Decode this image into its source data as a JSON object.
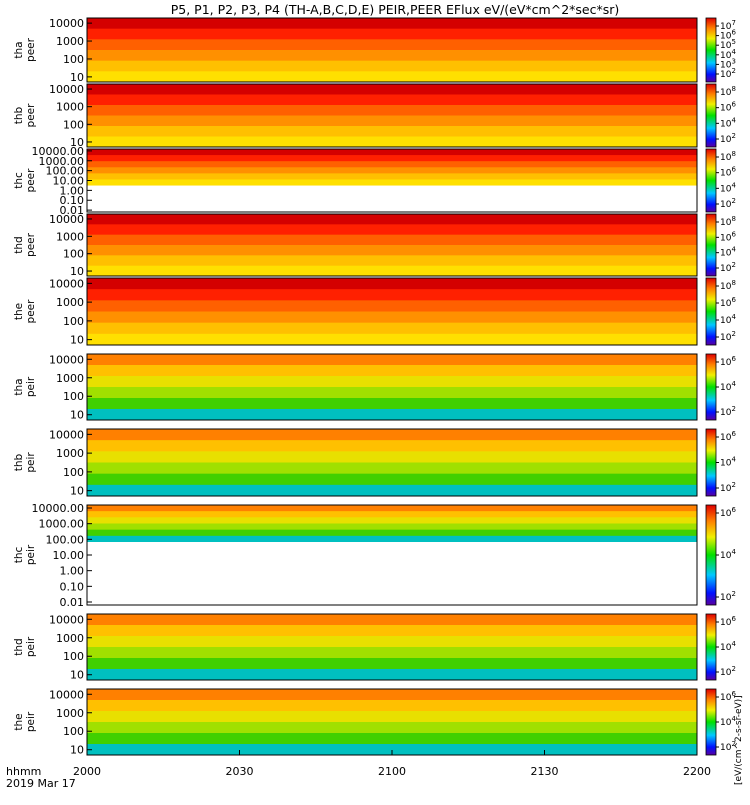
{
  "chart_data": {
    "type": "heatmap",
    "title": "P5, P1, P2, P3, P4 (TH-A,B,C,D,E) PEIR,PEER EFlux eV/(eV*cm^2*sec*sr)",
    "x": {
      "label_line1": "hhmm",
      "label_line2": "2019 Mar 17",
      "ticks": [
        "2000",
        "2030",
        "2100",
        "2130",
        "2200"
      ],
      "range": [
        "2000",
        "2200"
      ]
    },
    "colorbar_label": "[eV/(cm^2-s-sr-eV)]",
    "panels": [
      {
        "probe": "tha",
        "species": "peer",
        "ylabel": [
          "tha",
          "peer"
        ],
        "yticks": [
          "10000",
          "1000",
          "100",
          "10"
        ],
        "yscale": "log",
        "colorbar_ticks": [
          "10^7",
          "10^6",
          "10^5",
          "10^4",
          "10^3",
          "10^2"
        ]
      },
      {
        "probe": "thb",
        "species": "peer",
        "ylabel": [
          "thb",
          "peer"
        ],
        "yticks": [
          "10000",
          "1000",
          "100",
          "10"
        ],
        "yscale": "log",
        "colorbar_ticks": [
          "10^8",
          "10^6",
          "10^4",
          "10^2"
        ]
      },
      {
        "probe": "thc",
        "species": "peer",
        "ylabel": [
          "thc",
          "peer"
        ],
        "yticks": [
          "10000.00",
          "1000.00",
          "100.00",
          "10.00",
          "1.00",
          "0.10",
          "0.01"
        ],
        "yscale": "log",
        "colorbar_ticks": [
          "10^8",
          "10^6",
          "10^4",
          "10^2"
        ]
      },
      {
        "probe": "thd",
        "species": "peer",
        "ylabel": [
          "thd",
          "peer"
        ],
        "yticks": [
          "10000",
          "1000",
          "100",
          "10"
        ],
        "yscale": "log",
        "colorbar_ticks": [
          "10^8",
          "10^6",
          "10^4",
          "10^2"
        ]
      },
      {
        "probe": "the",
        "species": "peer",
        "ylabel": [
          "the",
          "peer"
        ],
        "yticks": [
          "10000",
          "1000",
          "100",
          "10"
        ],
        "yscale": "log",
        "colorbar_ticks": [
          "10^8",
          "10^6",
          "10^4",
          "10^2"
        ]
      },
      {
        "probe": "tha",
        "species": "peir",
        "ylabel": [
          "tha",
          "peir"
        ],
        "yticks": [
          "10000",
          "1000",
          "100",
          "10"
        ],
        "yscale": "log",
        "colorbar_ticks": [
          "10^6",
          "10^4",
          "10^2"
        ]
      },
      {
        "probe": "thb",
        "species": "peir",
        "ylabel": [
          "thb",
          "peir"
        ],
        "yticks": [
          "10000",
          "1000",
          "100",
          "10"
        ],
        "yscale": "log",
        "colorbar_ticks": [
          "10^6",
          "10^4",
          "10^2"
        ]
      },
      {
        "probe": "thc",
        "species": "peir",
        "ylabel": [
          "thc",
          "peir"
        ],
        "yticks": [
          "10000.00",
          "1000.00",
          "100.00",
          "10.00",
          "1.00",
          "0.10",
          "0.01"
        ],
        "yscale": "log",
        "colorbar_ticks": [
          "10^6",
          "10^4",
          "10^2"
        ]
      },
      {
        "probe": "thd",
        "species": "peir",
        "ylabel": [
          "thd",
          "peir"
        ],
        "yticks": [
          "10000",
          "1000",
          "100",
          "10"
        ],
        "yscale": "log",
        "colorbar_ticks": [
          "10^6",
          "10^4",
          "10^2"
        ]
      },
      {
        "probe": "the",
        "species": "peir",
        "ylabel": [
          "the",
          "peir"
        ],
        "yticks": [
          "10000",
          "1000",
          "100",
          "10"
        ],
        "yscale": "log",
        "colorbar_ticks": [
          "10^6",
          "10^4",
          "10^2"
        ]
      }
    ]
  }
}
